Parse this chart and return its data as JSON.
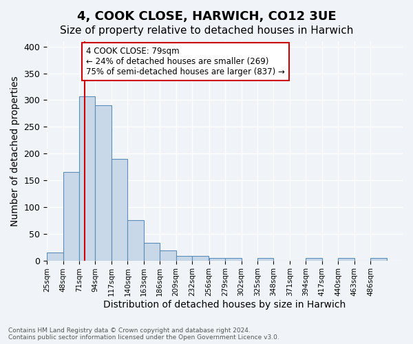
{
  "title": "4, COOK CLOSE, HARWICH, CO12 3UE",
  "subtitle": "Size of property relative to detached houses in Harwich",
  "xlabel": "Distribution of detached houses by size in Harwich",
  "ylabel": "Number of detached properties",
  "bin_edges": [
    25,
    48,
    71,
    94,
    117,
    140,
    163,
    186,
    209,
    232,
    256,
    279,
    302,
    325,
    348,
    371,
    394,
    417,
    440,
    463,
    486,
    509
  ],
  "bin_heights": [
    15,
    165,
    307,
    290,
    190,
    75,
    33,
    19,
    9,
    8,
    5,
    4,
    0,
    4,
    0,
    0,
    4,
    0,
    4,
    0,
    4
  ],
  "bar_color": "#c8d8e8",
  "bar_edge_color": "#5b8db8",
  "property_line_x": 79,
  "property_line_color": "#cc0000",
  "annotation_text": "4 COOK CLOSE: 79sqm\n← 24% of detached houses are smaller (269)\n75% of semi-detached houses are larger (837) →",
  "annotation_box_color": "#ffffff",
  "annotation_box_edge": "#cc0000",
  "ylim": [
    0,
    410
  ],
  "tick_labels": [
    "25sqm",
    "48sqm",
    "71sqm",
    "94sqm",
    "117sqm",
    "140sqm",
    "163sqm",
    "186sqm",
    "209sqm",
    "232sqm",
    "256sqm",
    "279sqm",
    "302sqm",
    "325sqm",
    "348sqm",
    "371sqm",
    "394sqm",
    "417sqm",
    "440sqm",
    "463sqm",
    "486sqm"
  ],
  "footer_text": "Contains HM Land Registry data © Crown copyright and database right 2024.\nContains public sector information licensed under the Open Government Licence v3.0.",
  "background_color": "#f0f4f8",
  "grid_color": "#ffffff",
  "title_fontsize": 13,
  "subtitle_fontsize": 11,
  "ylabel_fontsize": 10,
  "xlabel_fontsize": 10
}
